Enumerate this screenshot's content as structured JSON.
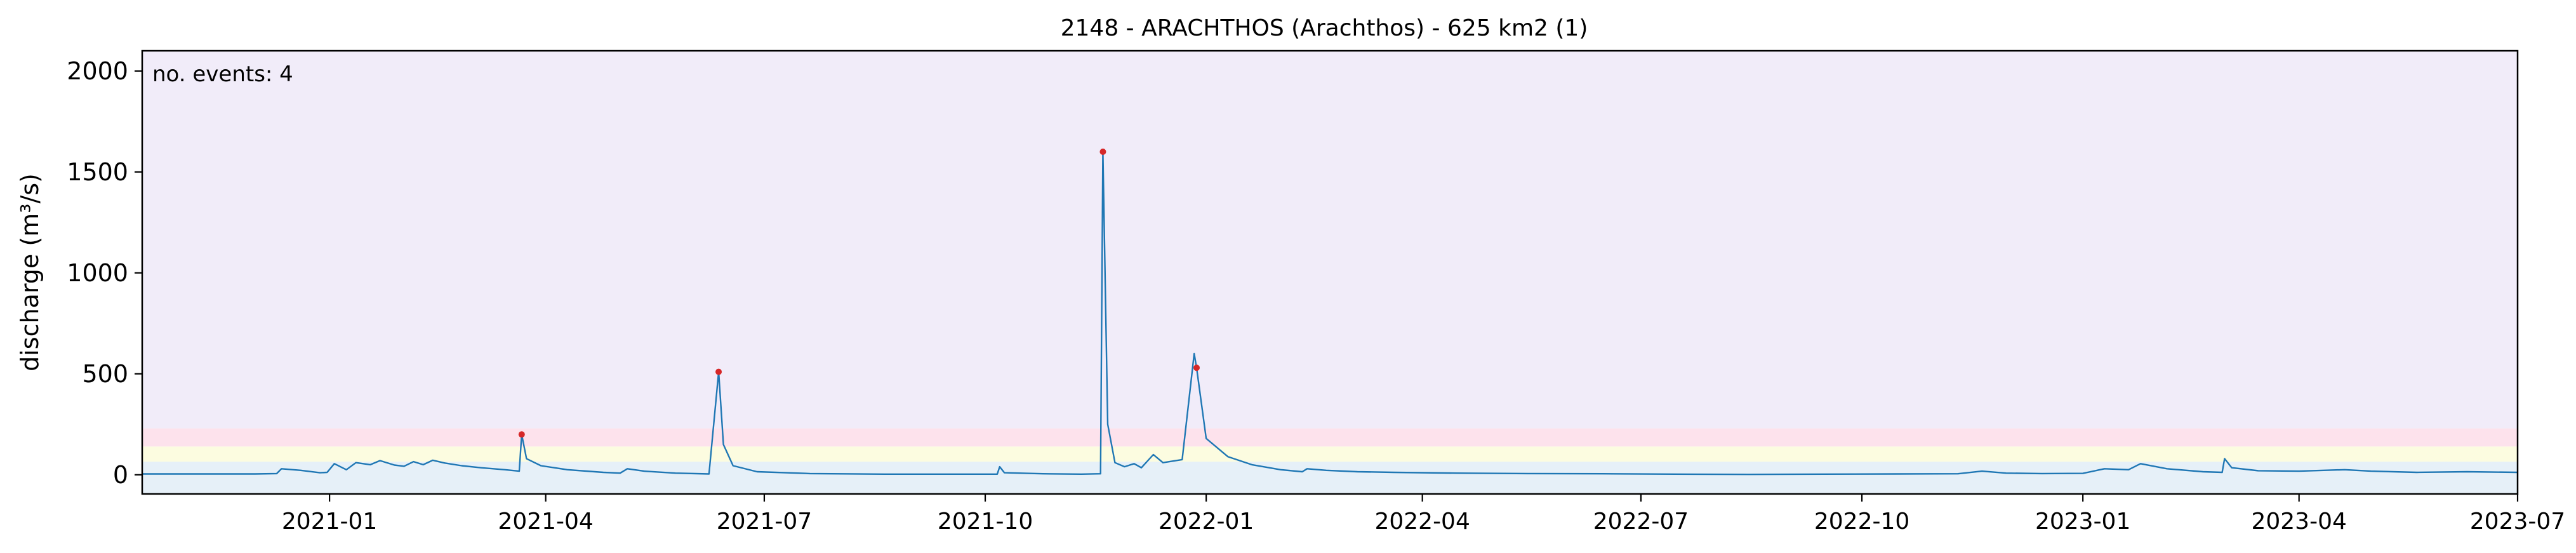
{
  "chart_data": {
    "type": "line",
    "title": "2148 - ARACHTHOS (Arachthos) - 625 km2 (1)",
    "xlabel": "",
    "ylabel": "discharge (m³/s)",
    "annotation": "no. events: 4",
    "xlim": [
      "2020-10-15",
      "2023-07-01"
    ],
    "ylim": [
      -95,
      2100
    ],
    "xticks": [
      {
        "date": "2021-01-01",
        "label": "2021-01"
      },
      {
        "date": "2021-04-01",
        "label": "2021-04"
      },
      {
        "date": "2021-07-01",
        "label": "2021-07"
      },
      {
        "date": "2021-10-01",
        "label": "2021-10"
      },
      {
        "date": "2022-01-01",
        "label": "2022-01"
      },
      {
        "date": "2022-04-01",
        "label": "2022-04"
      },
      {
        "date": "2022-07-01",
        "label": "2022-07"
      },
      {
        "date": "2022-10-01",
        "label": "2022-10"
      },
      {
        "date": "2023-01-01",
        "label": "2023-01"
      },
      {
        "date": "2023-04-01",
        "label": "2023-04"
      },
      {
        "date": "2023-07-01",
        "label": "2023-07"
      }
    ],
    "yticks": [
      0,
      500,
      1000,
      1500,
      2000
    ],
    "grid": false,
    "threshold_bands": [
      {
        "from": 65,
        "to": 140,
        "color": "#fcfce0"
      },
      {
        "from": 140,
        "to": 230,
        "color": "#fde2ec"
      },
      {
        "from": 230,
        "to": 2100,
        "color": "#f1ecf9"
      }
    ],
    "background_color": "#e6f0f8",
    "series": [
      {
        "color": "#1f77b4",
        "points": [
          [
            "2020-10-15",
            4
          ],
          [
            "2020-12-01",
            4
          ],
          [
            "2020-12-10",
            6
          ],
          [
            "2020-12-12",
            30
          ],
          [
            "2020-12-20",
            22
          ],
          [
            "2020-12-28",
            10
          ],
          [
            "2020-12-31",
            12
          ],
          [
            "2021-01-03",
            55
          ],
          [
            "2021-01-08",
            25
          ],
          [
            "2021-01-12",
            60
          ],
          [
            "2021-01-18",
            50
          ],
          [
            "2021-01-22",
            70
          ],
          [
            "2021-01-28",
            48
          ],
          [
            "2021-02-01",
            42
          ],
          [
            "2021-02-05",
            65
          ],
          [
            "2021-02-09",
            50
          ],
          [
            "2021-02-13",
            72
          ],
          [
            "2021-02-18",
            58
          ],
          [
            "2021-02-25",
            45
          ],
          [
            "2021-03-05",
            35
          ],
          [
            "2021-03-15",
            25
          ],
          [
            "2021-03-21",
            18
          ],
          [
            "2021-03-22",
            200
          ],
          [
            "2021-03-24",
            80
          ],
          [
            "2021-03-30",
            45
          ],
          [
            "2021-04-10",
            25
          ],
          [
            "2021-04-25",
            12
          ],
          [
            "2021-05-02",
            8
          ],
          [
            "2021-05-05",
            30
          ],
          [
            "2021-05-12",
            18
          ],
          [
            "2021-05-25",
            8
          ],
          [
            "2021-06-08",
            4
          ],
          [
            "2021-06-12",
            510
          ],
          [
            "2021-06-14",
            150
          ],
          [
            "2021-06-18",
            45
          ],
          [
            "2021-06-28",
            15
          ],
          [
            "2021-07-20",
            6
          ],
          [
            "2021-08-20",
            3
          ],
          [
            "2021-09-20",
            3
          ],
          [
            "2021-10-06",
            3
          ],
          [
            "2021-10-07",
            40
          ],
          [
            "2021-10-09",
            10
          ],
          [
            "2021-10-25",
            5
          ],
          [
            "2021-11-10",
            3
          ],
          [
            "2021-11-18",
            5
          ],
          [
            "2021-11-19",
            1600
          ],
          [
            "2021-11-21",
            250
          ],
          [
            "2021-11-24",
            60
          ],
          [
            "2021-11-28",
            40
          ],
          [
            "2021-12-02",
            55
          ],
          [
            "2021-12-05",
            35
          ],
          [
            "2021-12-10",
            100
          ],
          [
            "2021-12-14",
            60
          ],
          [
            "2021-12-22",
            75
          ],
          [
            "2021-12-27",
            600
          ],
          [
            "2021-12-28",
            530
          ],
          [
            "2022-01-01",
            180
          ],
          [
            "2022-01-10",
            90
          ],
          [
            "2022-01-20",
            50
          ],
          [
            "2022-02-01",
            25
          ],
          [
            "2022-02-10",
            15
          ],
          [
            "2022-02-12",
            30
          ],
          [
            "2022-02-20",
            22
          ],
          [
            "2022-03-05",
            15
          ],
          [
            "2022-03-20",
            12
          ],
          [
            "2022-04-15",
            8
          ],
          [
            "2022-05-15",
            6
          ],
          [
            "2022-06-15",
            5
          ],
          [
            "2022-07-15",
            3
          ],
          [
            "2022-08-15",
            2
          ],
          [
            "2022-09-15",
            3
          ],
          [
            "2022-10-15",
            4
          ],
          [
            "2022-11-10",
            5
          ],
          [
            "2022-11-20",
            18
          ],
          [
            "2022-11-30",
            8
          ],
          [
            "2022-12-15",
            6
          ],
          [
            "2023-01-01",
            7
          ],
          [
            "2023-01-10",
            30
          ],
          [
            "2023-01-20",
            25
          ],
          [
            "2023-01-25",
            55
          ],
          [
            "2023-02-05",
            30
          ],
          [
            "2023-02-20",
            15
          ],
          [
            "2023-02-28",
            12
          ],
          [
            "2023-03-01",
            80
          ],
          [
            "2023-03-04",
            35
          ],
          [
            "2023-03-15",
            20
          ],
          [
            "2023-04-01",
            18
          ],
          [
            "2023-04-20",
            25
          ],
          [
            "2023-05-01",
            18
          ],
          [
            "2023-05-20",
            12
          ],
          [
            "2023-06-10",
            15
          ],
          [
            "2023-07-01",
            12
          ]
        ]
      }
    ],
    "events": [
      {
        "date": "2021-03-22",
        "value": 200
      },
      {
        "date": "2021-06-12",
        "value": 510
      },
      {
        "date": "2021-11-19",
        "value": 1600
      },
      {
        "date": "2021-12-28",
        "value": 530
      }
    ],
    "event_color": "#d62728"
  }
}
